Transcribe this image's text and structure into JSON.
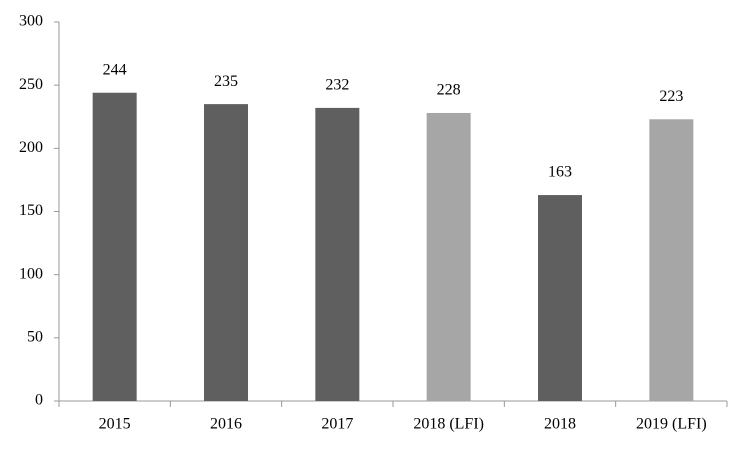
{
  "chart_data": {
    "type": "bar",
    "categories": [
      "2015",
      "2016",
      "2017",
      "2018 (LFI)",
      "2018",
      "2019 (LFI)"
    ],
    "values": [
      244,
      235,
      232,
      228,
      163,
      223
    ],
    "colors": [
      "#5f5f5f",
      "#5f5f5f",
      "#5f5f5f",
      "#a6a6a6",
      "#5f5f5f",
      "#a6a6a6"
    ],
    "ylim": [
      0,
      300
    ],
    "yticks": [
      0,
      50,
      100,
      150,
      200,
      250,
      300
    ],
    "grid": false
  }
}
